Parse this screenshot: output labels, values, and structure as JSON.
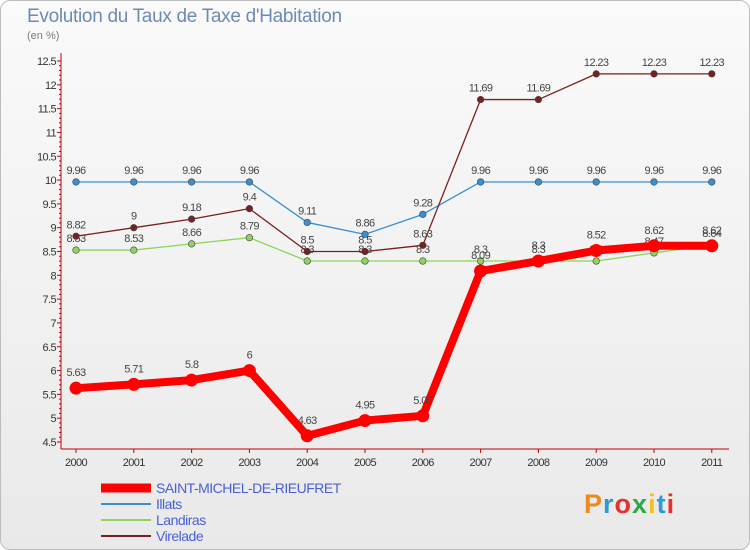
{
  "title": "Evolution du Taux de Taxe d'Habitation",
  "subtitle": "(en %)",
  "logo": {
    "text": "Proxiti",
    "letter_colors": [
      "#f08a1c",
      "#2e9ad6",
      "#e8302c",
      "#2ea84a",
      "#f2c21b",
      "#2e9ad6",
      "#e8302c"
    ]
  },
  "chart_data": {
    "type": "line",
    "title": "Evolution du Taux de Taxe d'Habitation",
    "ylabel": "(en %)",
    "x": [
      2000,
      2001,
      2002,
      2003,
      2004,
      2005,
      2006,
      2007,
      2008,
      2009,
      2010,
      2011
    ],
    "ylim": [
      4.5,
      12.5
    ],
    "yticks": [
      4.5,
      5,
      5.5,
      6,
      6.5,
      7,
      7.5,
      8,
      8.5,
      9,
      9.5,
      10,
      10.5,
      11,
      11.5,
      12,
      12.5
    ],
    "grid": false,
    "legend_position": "bottom-left",
    "series": [
      {
        "name": "SAINT-MICHEL-DE-RIEUFRET",
        "color": "#ff0000",
        "values": [
          5.63,
          5.71,
          5.8,
          6,
          4.63,
          4.95,
          5.05,
          8.09,
          8.3,
          8.52,
          8.62,
          8.62
        ],
        "labels": [
          "5.63",
          "5.71",
          "5.8",
          "6",
          "4.63",
          "4.95",
          "5.05",
          "8.09",
          "8.3",
          "8.52",
          "8.62",
          "8.62"
        ]
      },
      {
        "name": "Illats",
        "color": "#3a8fd1",
        "values": [
          9.96,
          9.96,
          9.96,
          9.96,
          9.11,
          8.86,
          9.28,
          9.96,
          9.96,
          9.96,
          9.96,
          9.96
        ],
        "labels": [
          "9.96",
          "9.96",
          "9.96",
          "9.96",
          "9.11",
          "8.86",
          "9.28",
          "9.96",
          "9.96",
          "9.96",
          "9.96",
          "9.96"
        ]
      },
      {
        "name": "Landiras",
        "color": "#8fd35a",
        "values": [
          8.53,
          8.53,
          8.66,
          8.79,
          8.3,
          8.3,
          8.3,
          8.3,
          8.3,
          8.3,
          8.47,
          8.64
        ],
        "labels": [
          "8.53",
          "8.53",
          "8.66",
          "8.79",
          "8.3",
          "8.3",
          "8.3",
          "8.3",
          "8.3",
          "8.3",
          "8.47",
          "8.64"
        ]
      },
      {
        "name": "Virelade",
        "color": "#7a1f1f",
        "values": [
          8.82,
          9,
          9.18,
          9.4,
          8.5,
          8.5,
          8.63,
          11.69,
          11.69,
          12.23,
          12.23,
          12.23
        ],
        "labels": [
          "8.82",
          "9",
          "9.18",
          "9.4",
          "8.5",
          "8.5",
          "8.63",
          "11.69",
          "11.69",
          "12.23",
          "12.23",
          "12.23"
        ]
      }
    ]
  }
}
